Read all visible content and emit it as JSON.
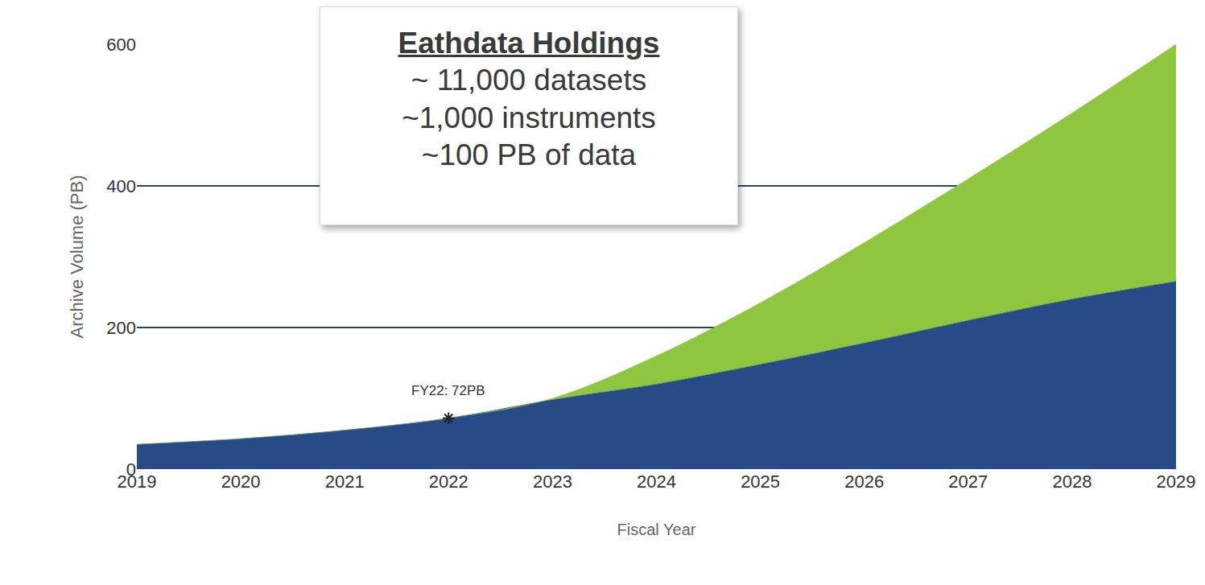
{
  "chart_data": {
    "type": "area",
    "xlabel": "Fiscal Year",
    "ylabel": "Archive Volume (PB)",
    "x": [
      2019,
      2020,
      2021,
      2022,
      2023,
      2024,
      2025,
      2026,
      2027,
      2028,
      2029
    ],
    "series": [
      {
        "color": "#274b86",
        "values": [
          35,
          43,
          55,
          72,
          98,
          120,
          148,
          178,
          210,
          240,
          265
        ]
      },
      {
        "color": "#8fc63f",
        "values": [
          35,
          43,
          55,
          72,
          100,
          160,
          235,
          320,
          410,
          503,
          600
        ]
      }
    ],
    "stacked": false,
    "xlim": [
      2019,
      2029
    ],
    "xticks": [
      2019,
      2020,
      2021,
      2022,
      2023,
      2024,
      2025,
      2026,
      2027,
      2028,
      2029
    ],
    "ylim": [
      0,
      600
    ],
    "yticks": [
      0,
      200,
      400,
      600
    ],
    "grid": true,
    "annotations": [
      {
        "text": "FY22: 72PB",
        "x": 2022,
        "y": 72
      }
    ],
    "text_box": {
      "title": "Eathdata Holdings",
      "lines": [
        "~ 11,000 datasets",
        "~1,000 instruments",
        "~100 PB of data"
      ]
    }
  }
}
